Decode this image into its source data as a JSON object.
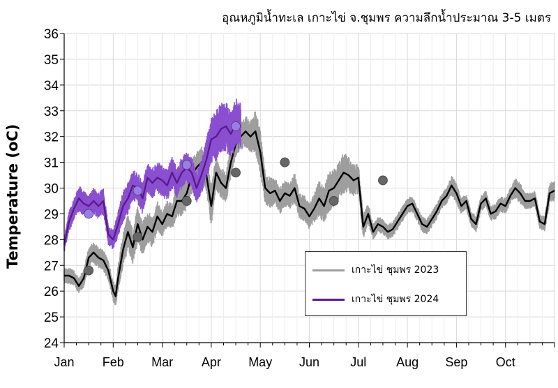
{
  "chart_data": {
    "type": "line",
    "title": "อุณหภูมิน้ำทะเล เกาะไข่ จ.ชุมพร ความลึกน้ำประมาณ 3-5 เมตร",
    "xlabel": "",
    "ylabel": "Temperature (oC)",
    "xlim": [
      0,
      10
    ],
    "ylim": [
      24,
      36
    ],
    "yticks": [
      24,
      25,
      26,
      27,
      28,
      29,
      30,
      31,
      32,
      33,
      34,
      35,
      36
    ],
    "xtick_labels": [
      "Jan",
      "Feb",
      "Mar",
      "Apr",
      "May",
      "Jun",
      "Jul",
      "Aug",
      "Sep",
      "Oct"
    ],
    "grid": true,
    "legend_position": "lower-right",
    "series": [
      {
        "name": "เกาะไข่ ชุมพร 2023",
        "color": "#9e9e9e",
        "mean_color": "#000000",
        "marker_color": "#666666",
        "x": [
          0.0,
          0.1,
          0.2,
          0.3,
          0.4,
          0.5,
          0.6,
          0.7,
          0.8,
          0.9,
          1.0,
          1.05,
          1.1,
          1.2,
          1.3,
          1.4,
          1.5,
          1.6,
          1.7,
          1.8,
          1.9,
          2.0,
          2.1,
          2.2,
          2.3,
          2.4,
          2.5,
          2.6,
          2.7,
          2.8,
          2.9,
          3.0,
          3.1,
          3.2,
          3.3,
          3.4,
          3.5,
          3.6,
          3.7,
          3.8,
          3.9,
          4.0,
          4.1,
          4.2,
          4.3,
          4.4,
          4.5,
          4.6,
          4.7,
          4.8,
          4.9,
          5.0,
          5.1,
          5.2,
          5.3,
          5.4,
          5.5,
          5.6,
          5.7,
          5.8,
          5.9,
          6.0,
          6.1,
          6.2,
          6.3,
          6.4,
          6.5,
          6.6,
          6.7,
          6.8,
          6.9,
          7.0,
          7.1,
          7.2,
          7.3,
          7.4,
          7.5,
          7.6,
          7.7,
          7.8,
          7.9,
          8.0,
          8.1,
          8.2,
          8.3,
          8.4,
          8.5,
          8.6,
          8.7,
          8.8,
          8.9,
          9.0,
          9.1,
          9.2,
          9.3,
          9.4,
          9.5,
          9.6,
          9.7,
          9.8,
          9.9,
          10.0
        ],
        "mean": [
          26.6,
          26.6,
          26.5,
          26.2,
          26.5,
          27.3,
          27.5,
          27.3,
          27.2,
          26.8,
          26.0,
          25.8,
          26.5,
          27.6,
          28.3,
          27.7,
          28.6,
          28.0,
          28.5,
          28.3,
          28.9,
          28.6,
          29.0,
          28.9,
          29.5,
          29.5,
          29.8,
          30.5,
          30.8,
          31.0,
          30.5,
          29.3,
          30.6,
          30.2,
          30.0,
          31.0,
          31.7,
          32.0,
          32.2,
          32.0,
          32.2,
          31.4,
          30.0,
          29.8,
          29.9,
          29.5,
          29.8,
          29.7,
          30.0,
          29.3,
          29.2,
          28.9,
          29.2,
          29.6,
          29.3,
          29.9,
          30.0,
          30.3,
          30.6,
          30.5,
          30.3,
          30.4,
          28.5,
          29.0,
          28.3,
          28.6,
          28.5,
          28.3,
          28.4,
          28.7,
          29.0,
          29.3,
          29.4,
          29.0,
          28.6,
          28.5,
          28.8,
          29.1,
          29.5,
          29.7,
          30.1,
          29.8,
          29.3,
          29.5,
          28.8,
          28.6,
          29.4,
          29.6,
          29.0,
          29.1,
          29.4,
          29.3,
          29.7,
          30.0,
          29.8,
          29.5,
          29.5,
          29.6,
          28.7,
          28.6,
          29.8,
          29.9
        ],
        "range_half_width": [
          0.3,
          0.3,
          0.3,
          0.3,
          0.35,
          0.4,
          0.4,
          0.4,
          0.4,
          0.4,
          0.4,
          0.4,
          0.5,
          0.7,
          0.7,
          0.7,
          0.7,
          0.7,
          0.6,
          0.6,
          0.6,
          0.5,
          0.5,
          0.5,
          0.6,
          0.6,
          0.6,
          0.7,
          0.6,
          0.6,
          0.7,
          0.8,
          0.7,
          0.6,
          0.6,
          0.6,
          0.5,
          0.5,
          0.6,
          0.6,
          0.8,
          0.9,
          0.6,
          0.6,
          0.5,
          0.5,
          0.5,
          0.5,
          0.6,
          0.5,
          0.5,
          0.5,
          0.6,
          0.7,
          0.7,
          0.8,
          0.8,
          0.7,
          0.8,
          0.7,
          0.6,
          0.6,
          0.5,
          0.4,
          0.3,
          0.3,
          0.3,
          0.3,
          0.3,
          0.3,
          0.3,
          0.3,
          0.3,
          0.3,
          0.3,
          0.3,
          0.3,
          0.3,
          0.3,
          0.3,
          0.4,
          0.4,
          0.3,
          0.3,
          0.3,
          0.3,
          0.3,
          0.3,
          0.3,
          0.3,
          0.3,
          0.3,
          0.3,
          0.4,
          0.4,
          0.3,
          0.3,
          0.3,
          0.3,
          0.3,
          0.4,
          0.4
        ],
        "markers": [
          {
            "x": 0.5,
            "y": 26.8
          },
          {
            "x": 1.5,
            "y": 28.1
          },
          {
            "x": 2.5,
            "y": 29.5
          },
          {
            "x": 3.5,
            "y": 30.6
          },
          {
            "x": 4.5,
            "y": 31.0
          },
          {
            "x": 5.5,
            "y": 29.5
          },
          {
            "x": 6.5,
            "y": 30.3
          }
        ]
      },
      {
        "name": "เกาะไข่ ชุมพร 2024",
        "color": "#8a4fd0",
        "mean_color": "#5b1a8c",
        "marker_color": "#9b7bf0",
        "x": [
          0.0,
          0.1,
          0.2,
          0.3,
          0.4,
          0.5,
          0.6,
          0.7,
          0.8,
          0.9,
          1.0,
          1.1,
          1.2,
          1.3,
          1.4,
          1.5,
          1.6,
          1.7,
          1.8,
          1.9,
          2.0,
          2.1,
          2.2,
          2.3,
          2.4,
          2.5,
          2.6,
          2.7,
          2.8,
          2.9,
          3.0,
          3.1,
          3.2,
          3.3,
          3.4,
          3.5,
          3.6
        ],
        "mean": [
          27.8,
          28.7,
          29.2,
          29.6,
          29.4,
          29.3,
          29.5,
          29.3,
          29.5,
          28.2,
          28.0,
          28.6,
          29.3,
          29.6,
          30.1,
          30.0,
          29.6,
          30.4,
          30.2,
          30.4,
          30.3,
          30.1,
          30.6,
          30.2,
          30.6,
          30.8,
          30.6,
          30.0,
          30.5,
          31.1,
          31.9,
          32.0,
          32.3,
          32.4,
          32.1,
          32.5,
          32.4
        ],
        "range_half_width": [
          0.3,
          0.4,
          0.4,
          0.5,
          0.5,
          0.4,
          0.5,
          0.5,
          0.5,
          0.4,
          0.4,
          0.5,
          0.6,
          0.6,
          0.6,
          0.6,
          0.6,
          0.6,
          0.6,
          0.6,
          0.6,
          0.6,
          0.6,
          0.6,
          0.6,
          0.6,
          0.6,
          0.6,
          0.7,
          0.8,
          0.9,
          1.0,
          1.0,
          1.0,
          0.9,
          1.0,
          0.9
        ],
        "markers": [
          {
            "x": 0.5,
            "y": 29.0
          },
          {
            "x": 1.5,
            "y": 29.9
          },
          {
            "x": 2.5,
            "y": 30.9
          },
          {
            "x": 3.5,
            "y": 32.4
          }
        ]
      }
    ]
  }
}
